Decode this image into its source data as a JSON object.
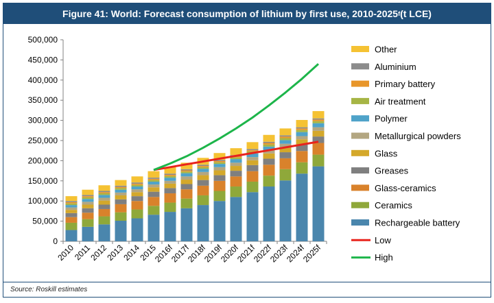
{
  "title": {
    "main": "Figure 41: World: Forecast consumption of lithium by first use, 2010-2025",
    "sup": "f",
    "unit": " (t LCE)"
  },
  "source": "Source: Roskill estimates",
  "chart_data": {
    "type": "bar",
    "stacked": true,
    "ylim": [
      0,
      500000
    ],
    "y_ticks": [
      "0",
      "50,000",
      "100,000",
      "150,000",
      "200,000",
      "250,000",
      "300,000",
      "350,000",
      "400,000",
      "450,000",
      "500,000"
    ],
    "categories": [
      "2010",
      "2011",
      "2012",
      "2013",
      "2014",
      "2015",
      "2016f",
      "2017f",
      "2018f",
      "2019f",
      "2020f",
      "2021f",
      "2022f",
      "2023f",
      "2024f",
      "2025f"
    ],
    "series": [
      {
        "name": "Rechargeable battery",
        "color": "#4a86ad",
        "values": [
          28000,
          36000,
          42000,
          51000,
          57000,
          66000,
          73000,
          82000,
          90000,
          100000,
          110000,
          122000,
          136000,
          151000,
          168000,
          186000
        ]
      },
      {
        "name": "Ceramics",
        "color": "#8fa83a",
        "values": [
          18000,
          19000,
          20000,
          21000,
          22000,
          22000,
          23000,
          24000,
          24000,
          25000,
          26000,
          26000,
          27000,
          28000,
          28000,
          29000
        ]
      },
      {
        "name": "Glass-ceramics",
        "color": "#d9822b",
        "values": [
          14000,
          16000,
          18000,
          20000,
          21000,
          22000,
          23000,
          23000,
          24000,
          25000,
          25000,
          26000,
          27000,
          27000,
          28000,
          29000
        ]
      },
      {
        "name": "Greases",
        "color": "#7f7f7f",
        "values": [
          10000,
          11000,
          11000,
          12000,
          12000,
          13000,
          13000,
          13000,
          14000,
          14000,
          14000,
          15000,
          15000,
          15000,
          16000,
          16000
        ]
      },
      {
        "name": "Glass",
        "color": "#d4a82a",
        "values": [
          8000,
          9000,
          10000,
          10000,
          10000,
          11000,
          11000,
          11000,
          12000,
          12000,
          12000,
          12000,
          13000,
          13000,
          13000,
          14000
        ]
      },
      {
        "name": "Metallurgical powders",
        "color": "#b3a681",
        "values": [
          6000,
          7000,
          7000,
          7000,
          7000,
          7000,
          7000,
          8000,
          8000,
          8000,
          8000,
          8000,
          8000,
          8000,
          8000,
          9000
        ]
      },
      {
        "name": "Polymer",
        "color": "#4fa3c9",
        "values": [
          6000,
          7000,
          7000,
          7000,
          7000,
          7000,
          8000,
          8000,
          8000,
          8000,
          9000,
          9000,
          9000,
          9000,
          10000,
          10000
        ]
      },
      {
        "name": "Air treatment",
        "color": "#a6b545",
        "values": [
          4000,
          4000,
          4000,
          4000,
          4000,
          4000,
          4000,
          4000,
          4000,
          4000,
          4000,
          5000,
          5000,
          5000,
          5000,
          5000
        ]
      },
      {
        "name": "Primary battery",
        "color": "#e8962a",
        "values": [
          3000,
          3000,
          3000,
          3000,
          3000,
          3000,
          3000,
          3000,
          3000,
          3000,
          3000,
          3000,
          4000,
          4000,
          4000,
          4000
        ]
      },
      {
        "name": "Aluminium",
        "color": "#8c8c8c",
        "values": [
          3000,
          3000,
          3000,
          3000,
          3000,
          3000,
          3000,
          3000,
          3000,
          3000,
          3000,
          3000,
          3000,
          3000,
          3000,
          3000
        ]
      },
      {
        "name": "Other",
        "color": "#f5c233",
        "values": [
          12000,
          13000,
          14000,
          14000,
          15000,
          16000,
          16000,
          16000,
          17000,
          17000,
          17000,
          17000,
          17000,
          17000,
          18000,
          18000
        ]
      }
    ],
    "lines": [
      {
        "name": "Low",
        "color": "#e8231c",
        "x": [
          "2015",
          "2025f"
        ],
        "values": [
          177000,
          247000
        ]
      },
      {
        "name": "High",
        "color": "#1db54a",
        "x": [
          "2015",
          "2016f",
          "2017f",
          "2018f",
          "2019f",
          "2020f",
          "2021f",
          "2022f",
          "2023f",
          "2024f",
          "2025f"
        ],
        "values": [
          177000,
          193000,
          211000,
          232000,
          255000,
          280000,
          307000,
          337000,
          369000,
          403000,
          440000
        ]
      }
    ]
  }
}
